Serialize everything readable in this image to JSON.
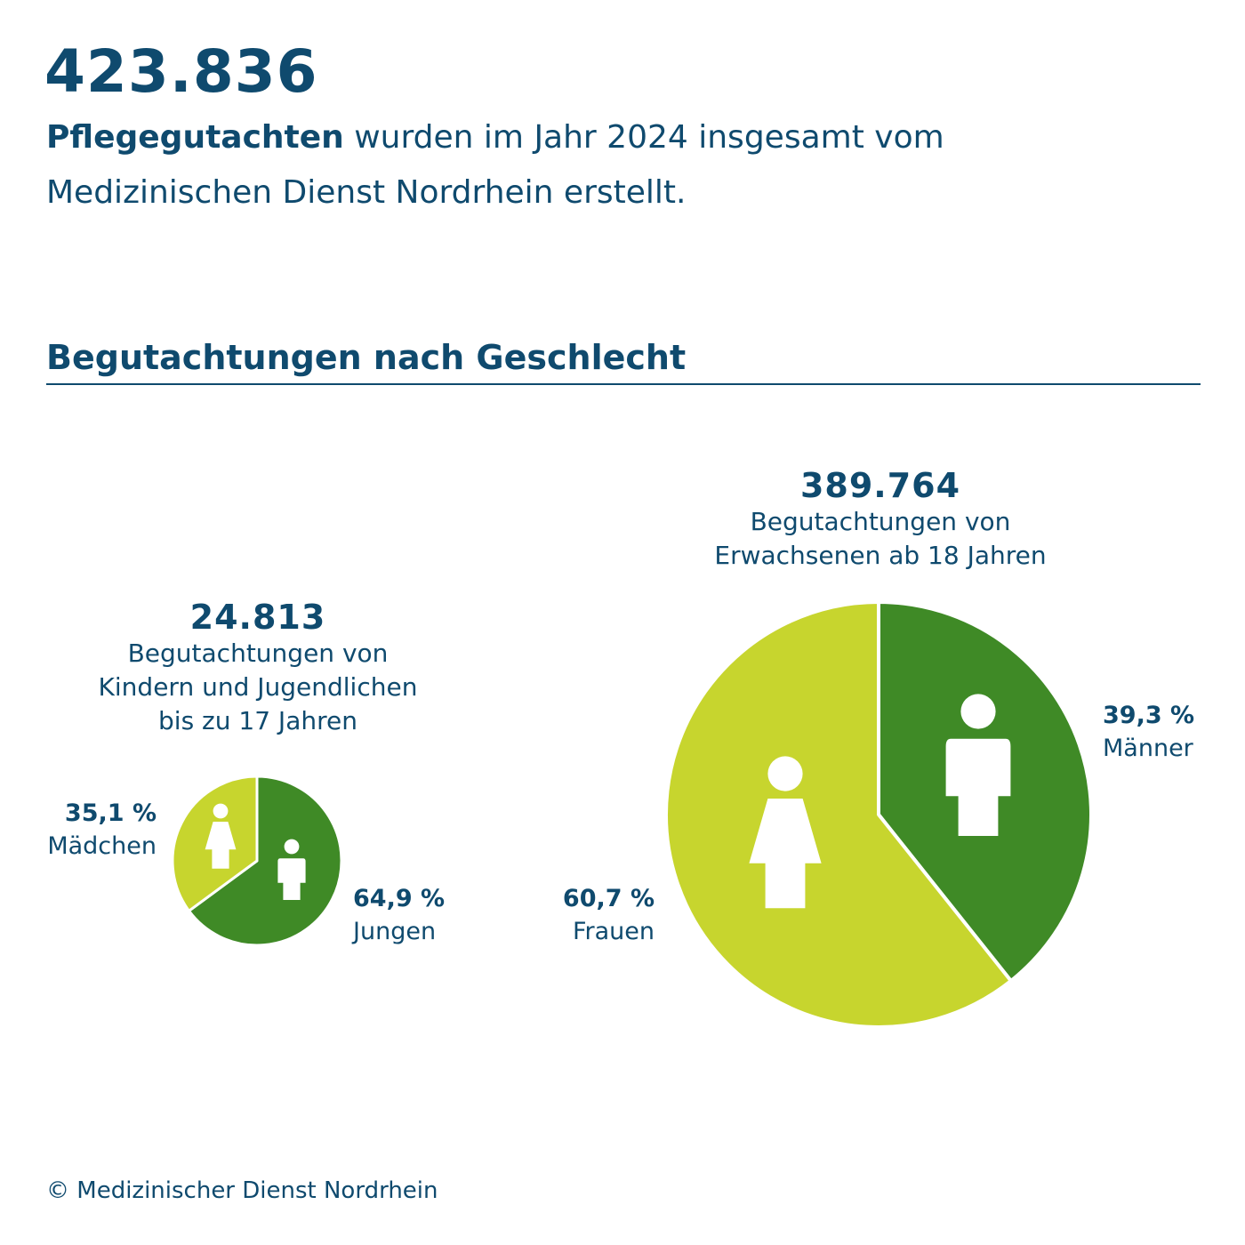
{
  "header": {
    "total_number": "423.836",
    "text_bold": "Pflegegutachten",
    "text_rest": " wurden im Jahr 2024 insgesamt vom Medizinischen Dienst Nordrhein erstellt."
  },
  "section": {
    "title": "Begutachtungen nach Geschlecht"
  },
  "kids": {
    "number": "24.813",
    "desc_line1": "Begutachtungen von",
    "desc_line2": "Kindern und Jugendlichen",
    "desc_line3": "bis zu 17 Jahren"
  },
  "adults": {
    "number": "389.764",
    "desc_line1": "Begutachtungen von",
    "desc_line2": "Erwachsenen ab 18 Jahren"
  },
  "colors": {
    "text": "#0f4a6e",
    "dark_green": "#3f8a26",
    "light_green": "#c7d52e"
  },
  "chart_data": [
    {
      "type": "pie",
      "slices": [
        {
          "label": "Jungen",
          "value": 64.9,
          "value_label": "64,9 %",
          "color": "#3f8a26",
          "icon": "male-person-icon"
        },
        {
          "label": "Mädchen",
          "value": 35.1,
          "value_label": "35,1 %",
          "color": "#c7d52e",
          "icon": "female-person-icon"
        }
      ]
    },
    {
      "type": "pie",
      "slices": [
        {
          "label": "Männer",
          "value": 39.3,
          "value_label": "39,3 %",
          "color": "#3f8a26",
          "icon": "male-person-icon"
        },
        {
          "label": "Frauen",
          "value": 60.7,
          "value_label": "60,7 %",
          "color": "#c7d52e",
          "icon": "female-person-icon"
        }
      ]
    }
  ],
  "footer": {
    "copyright": "© Medizinischer Dienst Nordrhein"
  }
}
